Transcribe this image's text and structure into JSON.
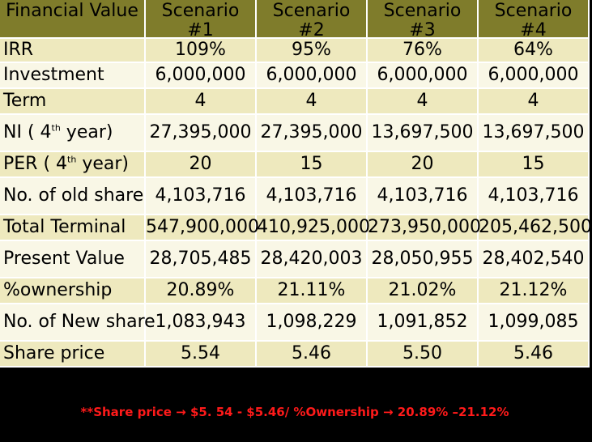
{
  "table": {
    "headers": [
      "Financial Value",
      "Scenario #1",
      "Scenario #2",
      "Scenario #3",
      "Scenario #4"
    ],
    "rows": [
      {
        "metric": "IRR",
        "values": [
          "109%",
          "95%",
          "76%",
          "64%"
        ]
      },
      {
        "metric": "Investment",
        "values": [
          "6,000,000",
          "6,000,000",
          "6,000,000",
          "6,000,000"
        ]
      },
      {
        "metric": "Term",
        "values": [
          "4",
          "4",
          "4",
          "4"
        ]
      },
      {
        "metric": "NI ( 4th year)",
        "values": [
          "27,395,000",
          "27,395,000",
          "13,697,500",
          "13,697,500"
        ]
      },
      {
        "metric": "PER ( 4th year)",
        "values": [
          "20",
          "15",
          "20",
          "15"
        ]
      },
      {
        "metric": "No. of old share",
        "values": [
          "4,103,716",
          "4,103,716",
          "4,103,716",
          "4,103,716"
        ]
      },
      {
        "metric": "Total Terminal",
        "values": [
          "547,900,000",
          "410,925,000",
          "273,950,000",
          "205,462,500"
        ]
      },
      {
        "metric": "Present Value",
        "values": [
          "28,705,485",
          "28,420,003",
          "28,050,955",
          "28,402,540"
        ]
      },
      {
        "metric": "%ownership",
        "values": [
          "20.89%",
          "21.11%",
          "21.02%",
          "21.12%"
        ]
      },
      {
        "metric": "No. of New share",
        "values": [
          "1,083,943",
          "1,098,229",
          "1,091,852",
          "1,099,085"
        ]
      },
      {
        "metric": "Share price",
        "values": [
          "5.54",
          "5.46",
          "5.50",
          "5.46"
        ]
      }
    ]
  },
  "banner": {
    "text": "**Share price → $5. 54 - $5.46/ %Ownership → 20.89% –21.12%"
  },
  "colors": {
    "header_bg": "#7f7c2b",
    "row_odd_bg": "#eee9be",
    "row_even_bg": "#f9f7e6",
    "banner_text": "#ff1a1a",
    "background": "#000000"
  }
}
